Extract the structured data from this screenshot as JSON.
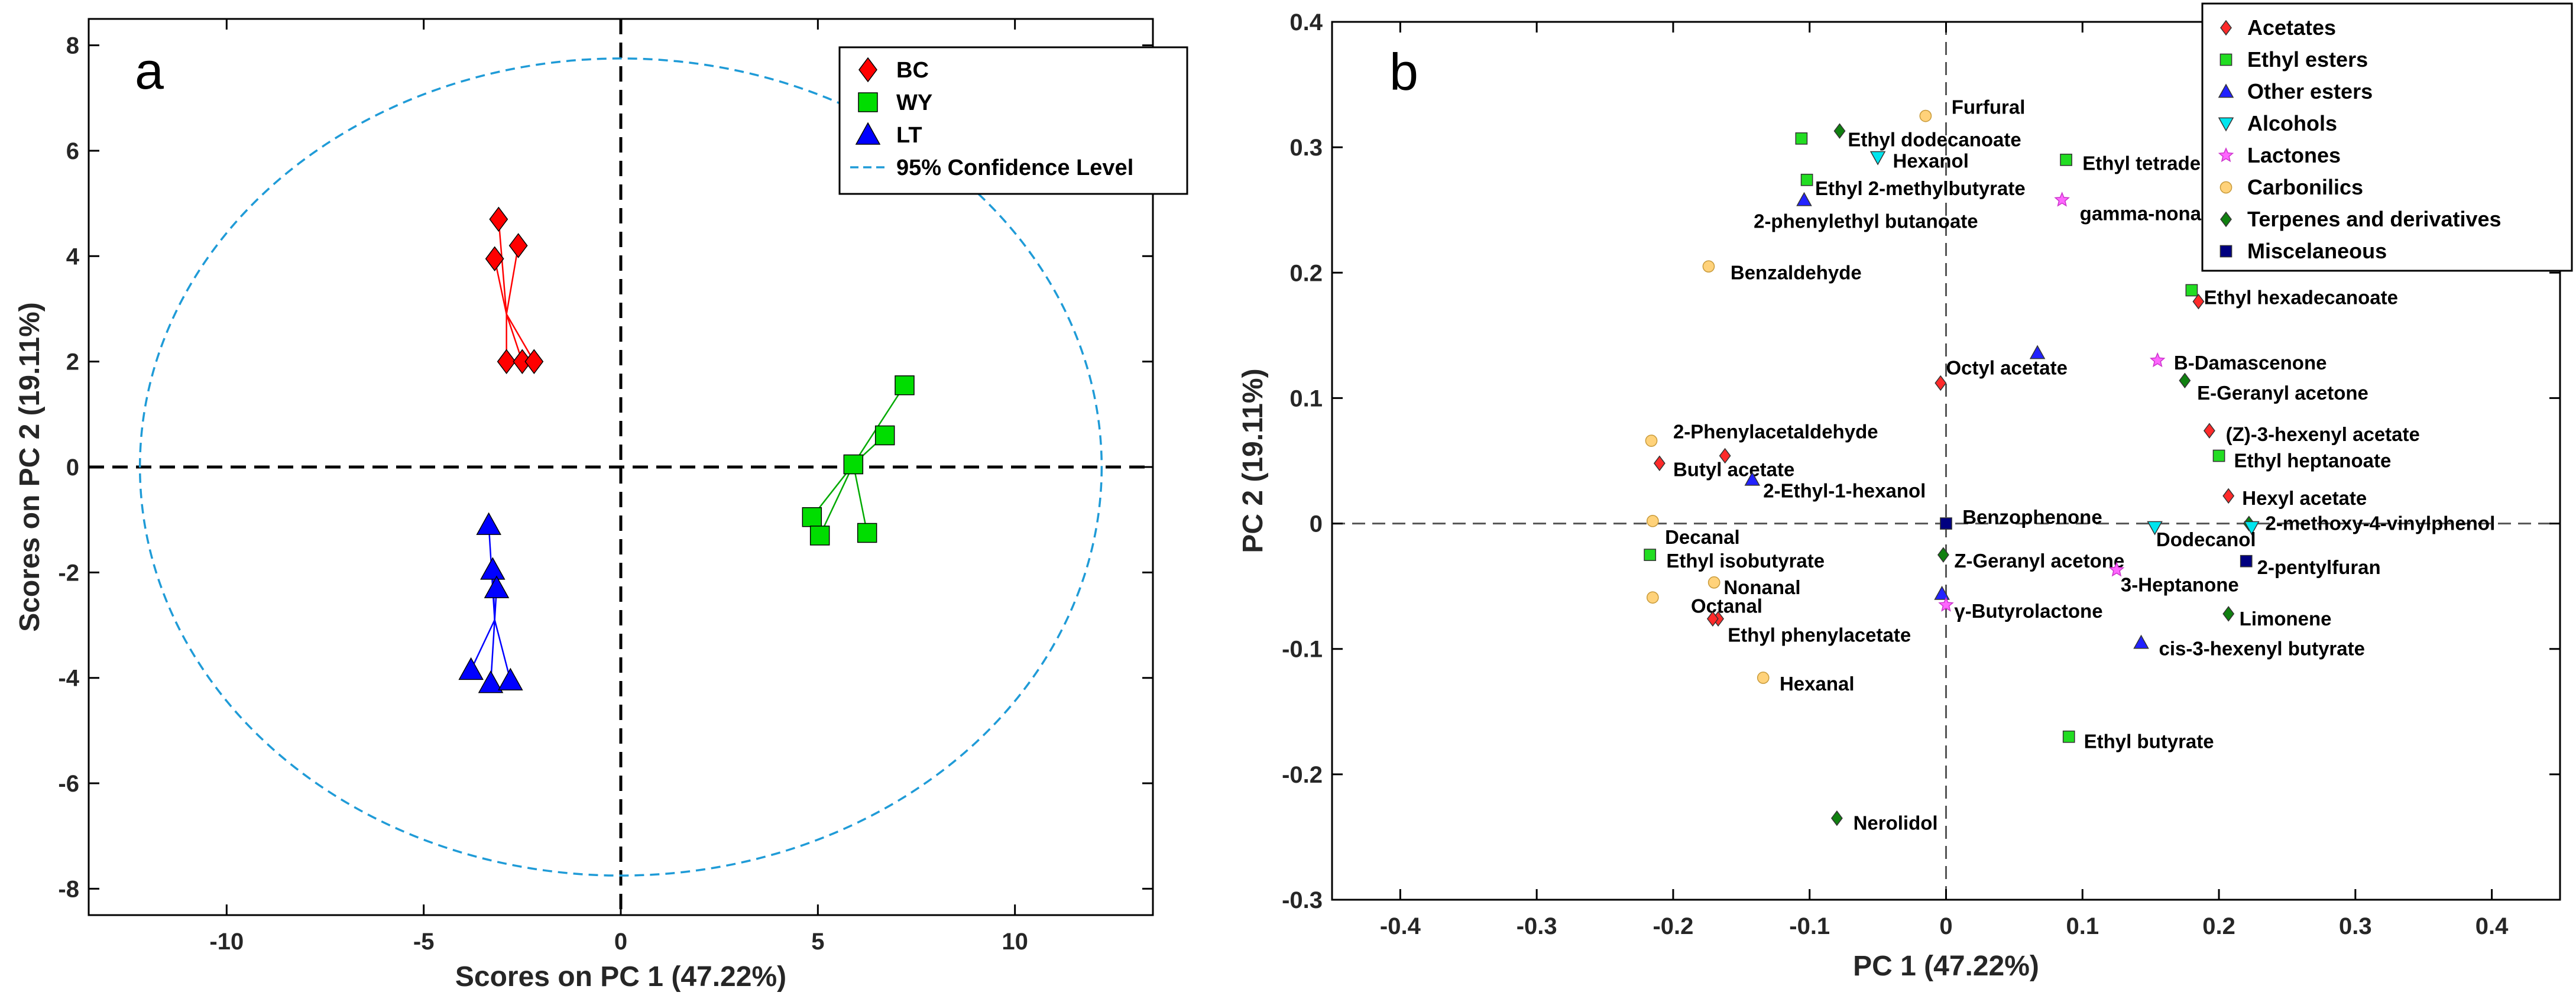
{
  "chart_data": [
    {
      "type": "scatter",
      "panel_label": "a",
      "title": "",
      "xlabel": "Scores on PC 1 (47.22%)",
      "ylabel": "Scores on PC 2 (19.11%)",
      "xlim": [
        -13.5,
        13.5
      ],
      "ylim": [
        -8.5,
        8.5
      ],
      "xticks": [
        -10,
        -5,
        0,
        5,
        10
      ],
      "yticks": [
        -8,
        -6,
        -4,
        -2,
        0,
        2,
        4,
        6,
        8
      ],
      "grid": false,
      "legend_position": "top-right",
      "legend": [
        "BC",
        "WY",
        "LT",
        "95% Confidence Level"
      ],
      "confidence_ellipse": {
        "center": [
          0,
          0
        ],
        "rx": 12.2,
        "ry": 7.75,
        "color": "#1f9bd7"
      },
      "series": [
        {
          "name": "BC",
          "marker": "diamond",
          "color": "#ff0000",
          "line_color": "#ff0000",
          "centroid": [
            -2.9,
            2.9
          ],
          "points": [
            [
              -3.1,
              4.7
            ],
            [
              -3.2,
              3.95
            ],
            [
              -2.6,
              4.2
            ],
            [
              -2.9,
              2.0
            ],
            [
              -2.5,
              2.0
            ],
            [
              -2.2,
              2.0
            ]
          ]
        },
        {
          "name": "WY",
          "marker": "square",
          "color": "#00dd00",
          "line_color": "#00aa00",
          "centroid": [
            5.9,
            0.05
          ],
          "points": [
            [
              7.2,
              1.55
            ],
            [
              6.7,
              0.6
            ],
            [
              5.9,
              0.05
            ],
            [
              4.85,
              -0.95
            ],
            [
              5.05,
              -1.3
            ],
            [
              6.25,
              -1.25
            ]
          ]
        },
        {
          "name": "LT",
          "marker": "triangle",
          "color": "#0000ff",
          "line_color": "#0000ff",
          "centroid": [
            -3.2,
            -2.9
          ],
          "points": [
            [
              -3.35,
              -1.1
            ],
            [
              -3.25,
              -1.95
            ],
            [
              -3.15,
              -2.3
            ],
            [
              -3.8,
              -3.85
            ],
            [
              -3.3,
              -4.1
            ],
            [
              -2.8,
              -4.05
            ]
          ]
        }
      ]
    },
    {
      "type": "scatter",
      "panel_label": "b",
      "title": "",
      "xlabel": "PC 1 (47.22%)",
      "ylabel": "PC 2 (19.11%)",
      "xlim": [
        -0.45,
        0.45
      ],
      "ylim": [
        -0.3,
        0.4
      ],
      "xticks": [
        -0.4,
        -0.3,
        -0.2,
        -0.1,
        0,
        0.1,
        0.2,
        0.3,
        0.4
      ],
      "yticks": [
        -0.3,
        -0.2,
        -0.1,
        0,
        0.1,
        0.2,
        0.3,
        0.4
      ],
      "xtick_labels": [
        "-0.4",
        "-0.3",
        "-0.2",
        "-0.1",
        "0",
        "0.1",
        "0.2",
        "0.3",
        "0.4"
      ],
      "ytick_labels": [
        "-0.3",
        "-0.2",
        "-0.1",
        "0",
        "0.1",
        "0.2",
        "0.3",
        "0.4"
      ],
      "grid": false,
      "legend_position": "top-right",
      "categories": [
        {
          "name": "Acetates",
          "marker": "diamond",
          "color": "#ff2a2a"
        },
        {
          "name": "Ethyl esters",
          "marker": "square",
          "color": "#22dd22"
        },
        {
          "name": "Other esters",
          "marker": "triangle",
          "color": "#2222ff"
        },
        {
          "name": "Alcohols",
          "marker": "triangle-down",
          "color": "#00e5ee"
        },
        {
          "name": "Lactones",
          "marker": "star",
          "color": "#ff66ff"
        },
        {
          "name": "Carbonilics",
          "marker": "circle",
          "color": "#ffd27a"
        },
        {
          "name": "Terpenes and derivatives",
          "marker": "diamond",
          "color": "#108010"
        },
        {
          "name": "Miscelaneous",
          "marker": "square",
          "color": "#000080"
        }
      ],
      "points": [
        {
          "label": "Furfural",
          "cat": 5,
          "x": -0.015,
          "y": 0.325,
          "lx": 0.004,
          "ly": 0.332
        },
        {
          "label": "Ethyl dodecanoate",
          "cat": 6,
          "x": -0.078,
          "y": 0.313,
          "lx": -0.072,
          "ly": 0.306
        },
        {
          "label": "",
          "cat": 1,
          "x": -0.106,
          "y": 0.307
        },
        {
          "label": "Hexanol",
          "cat": 3,
          "x": -0.05,
          "y": 0.292,
          "lx": -0.039,
          "ly": 0.289
        },
        {
          "label": "Ethyl tetradecanoate",
          "cat": 1,
          "x": 0.088,
          "y": 0.29,
          "lx": 0.1,
          "ly": 0.287
        },
        {
          "label": "Ethyl 2-methylbutyrate",
          "cat": 1,
          "x": -0.102,
          "y": 0.274,
          "lx": -0.096,
          "ly": 0.267
        },
        {
          "label": "2-phenylethyl butanoate",
          "cat": 2,
          "x": -0.104,
          "y": 0.258,
          "lx": -0.141,
          "ly": 0.241
        },
        {
          "label": "gamma-nonalactone",
          "cat": 4,
          "x": 0.085,
          "y": 0.258,
          "lx": 0.098,
          "ly": 0.247
        },
        {
          "label": "Benzaldehyde",
          "cat": 5,
          "x": -0.174,
          "y": 0.205,
          "lx": -0.158,
          "ly": 0.2
        },
        {
          "label": "Ethyl hexadecanoate",
          "cat": 1,
          "x": 0.18,
          "y": 0.186,
          "lx": 0.189,
          "ly": 0.18
        },
        {
          "label": "",
          "cat": 0,
          "x": 0.185,
          "y": 0.177
        },
        {
          "label": "",
          "cat": 2,
          "x": 0.067,
          "y": 0.136
        },
        {
          "label": "B-Damascenone",
          "cat": 4,
          "x": 0.155,
          "y": 0.13,
          "lx": 0.167,
          "ly": 0.128
        },
        {
          "label": "Octyl acetate",
          "cat": 0,
          "x": -0.004,
          "y": 0.112,
          "lx": 0.0,
          "ly": 0.124
        },
        {
          "label": "E-Geranyl acetone",
          "cat": 6,
          "x": 0.175,
          "y": 0.114,
          "lx": 0.184,
          "ly": 0.104
        },
        {
          "label": "(Z)-3-hexenyl acetate",
          "cat": 0,
          "x": 0.193,
          "y": 0.074,
          "lx": 0.205,
          "ly": 0.071
        },
        {
          "label": "2-Phenylacetaldehyde",
          "cat": 5,
          "x": -0.216,
          "y": 0.066,
          "lx": -0.2,
          "ly": 0.073
        },
        {
          "label": "Ethyl heptanoate",
          "cat": 1,
          "x": 0.2,
          "y": 0.054,
          "lx": 0.211,
          "ly": 0.05
        },
        {
          "label": "",
          "cat": 0,
          "x": -0.162,
          "y": 0.054
        },
        {
          "label": "Butyl acetate",
          "cat": 0,
          "x": -0.21,
          "y": 0.048,
          "lx": -0.2,
          "ly": 0.043
        },
        {
          "label": "2-Ethyl-1-hexanol",
          "cat": 2,
          "x": -0.142,
          "y": 0.035,
          "lx": -0.134,
          "ly": 0.026
        },
        {
          "label": "Hexyl acetate",
          "cat": 0,
          "x": 0.207,
          "y": 0.022,
          "lx": 0.217,
          "ly": 0.02
        },
        {
          "label": "Benzophenone",
          "cat": 7,
          "x": 0.0,
          "y": 0.0,
          "lx": 0.012,
          "ly": 0.005
        },
        {
          "label": "2-methoxy-4-vinylphenol",
          "cat": 6,
          "x": 0.222,
          "y": 0.0,
          "lx": 0.234,
          "ly": 0.0
        },
        {
          "label": "",
          "cat": 3,
          "x": 0.224,
          "y": -0.003
        },
        {
          "label": "Decanal",
          "cat": 5,
          "x": -0.215,
          "y": 0.002,
          "lx": -0.206,
          "ly": -0.011
        },
        {
          "label": "Dodecanol",
          "cat": 3,
          "x": 0.153,
          "y": -0.003,
          "lx": 0.154,
          "ly": -0.013
        },
        {
          "label": "Ethyl isobutyrate",
          "cat": 1,
          "x": -0.217,
          "y": -0.025,
          "lx": -0.205,
          "ly": -0.03
        },
        {
          "label": "Z-Geranyl acetone",
          "cat": 6,
          "x": -0.002,
          "y": -0.025,
          "lx": 0.006,
          "ly": -0.03
        },
        {
          "label": "2-pentylfuran",
          "cat": 7,
          "x": 0.22,
          "y": -0.03,
          "lx": 0.228,
          "ly": -0.035
        },
        {
          "label": "3-Heptanone",
          "cat": 4,
          "x": 0.125,
          "y": -0.037,
          "lx": 0.128,
          "ly": -0.049
        },
        {
          "label": "Nonanal",
          "cat": 5,
          "x": -0.17,
          "y": -0.047,
          "lx": -0.163,
          "ly": -0.051
        },
        {
          "label": "",
          "cat": 2,
          "x": -0.003,
          "y": -0.056
        },
        {
          "label": "Octanal",
          "cat": 5,
          "x": -0.215,
          "y": -0.059,
          "lx": -0.187,
          "ly": -0.066
        },
        {
          "label": "γ-Butyrolactone",
          "cat": 4,
          "x": 0.0,
          "y": -0.065,
          "lx": 0.006,
          "ly": -0.07
        },
        {
          "label": "Limonene",
          "cat": 6,
          "x": 0.207,
          "y": -0.072,
          "lx": 0.215,
          "ly": -0.076
        },
        {
          "label": "",
          "cat": 0,
          "x": -0.167,
          "y": -0.076
        },
        {
          "label": "Ethyl phenylacetate",
          "cat": 0,
          "x": -0.171,
          "y": -0.076,
          "lx": -0.16,
          "ly": -0.089
        },
        {
          "label": "cis-3-hexenyl butyrate",
          "cat": 2,
          "x": 0.143,
          "y": -0.095,
          "lx": 0.156,
          "ly": -0.1
        },
        {
          "label": "Hexanal",
          "cat": 5,
          "x": -0.134,
          "y": -0.123,
          "lx": -0.122,
          "ly": -0.128
        },
        {
          "label": "Ethyl butyrate",
          "cat": 1,
          "x": 0.09,
          "y": -0.17,
          "lx": 0.101,
          "ly": -0.174
        },
        {
          "label": "Nerolidol",
          "cat": 6,
          "x": -0.08,
          "y": -0.235,
          "lx": -0.068,
          "ly": -0.239
        }
      ]
    }
  ]
}
